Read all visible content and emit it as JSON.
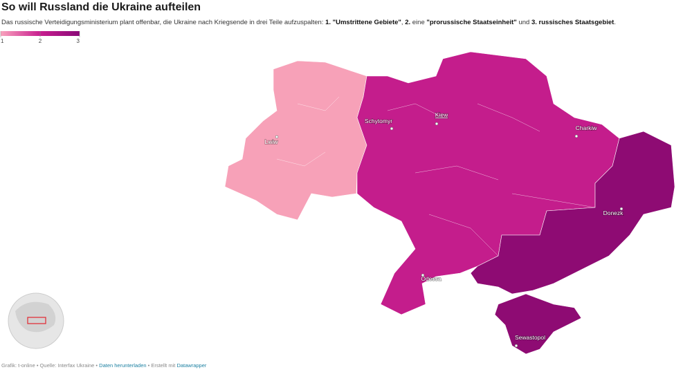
{
  "title": "So will Russland die Ukraine aufteilen",
  "description": [
    {
      "text": "Das russische Verteidigungsministerium plant offenbar, die Ukraine nach Kriegsende in drei Teile aufzuspalten: ",
      "bold": false
    },
    {
      "text": "1. \"Umstrittene Gebiete\"",
      "bold": true
    },
    {
      "text": ", ",
      "bold": false
    },
    {
      "text": "2.",
      "bold": true
    },
    {
      "text": " eine ",
      "bold": false
    },
    {
      "text": "\"prorussische Staatseinheit\"",
      "bold": true
    },
    {
      "text": " und ",
      "bold": false
    },
    {
      "text": "3. russisches Staatsgebiet",
      "bold": true
    },
    {
      "text": ".",
      "bold": false
    }
  ],
  "legend": {
    "range": [
      1,
      3
    ],
    "ticks": [
      1,
      2,
      3
    ],
    "colors": [
      "#f9a3bd",
      "#c81e8f",
      "#8a0a78"
    ]
  },
  "zones": [
    {
      "value": 1,
      "color": "#f7a1b8"
    },
    {
      "value": 2,
      "color": "#c41d8c"
    },
    {
      "value": 3,
      "color": "#8e0b73"
    }
  ],
  "cities": [
    {
      "name": "Lwiw",
      "capital": false
    },
    {
      "name": "Schytomyr",
      "capital": false
    },
    {
      "name": "Kiew",
      "capital": true
    },
    {
      "name": "Charkiw",
      "capital": false
    },
    {
      "name": "Donezk",
      "capital": false
    },
    {
      "name": "Odessa",
      "capital": false
    },
    {
      "name": "Sewastopol",
      "capital": false
    }
  ],
  "footer": [
    {
      "text": "Grafik: t-online • Quelle: Interfax Ukraine • ",
      "link": false
    },
    {
      "text": "Daten herunterladen",
      "link": true
    },
    {
      "text": " • Erstellt mit ",
      "link": false
    },
    {
      "text": "Datawrapper",
      "link": true
    }
  ]
}
